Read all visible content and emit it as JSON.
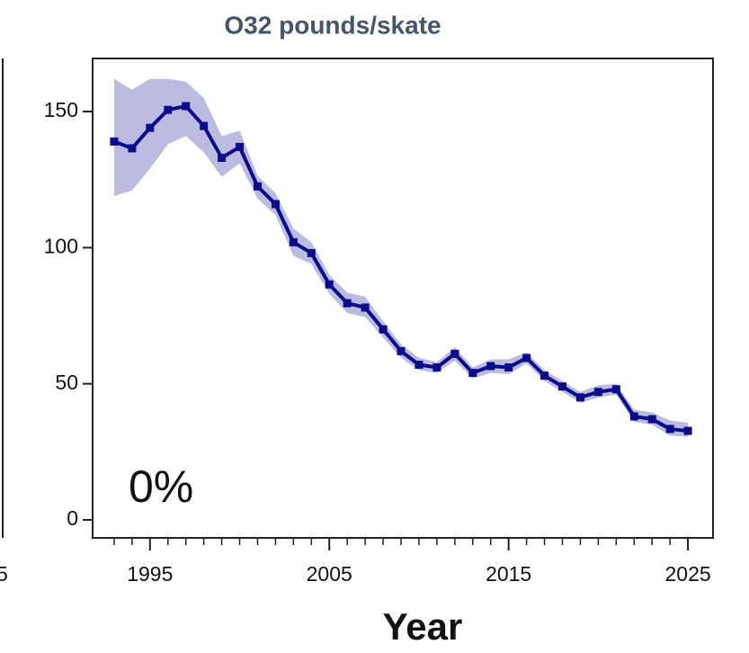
{
  "chart_data": {
    "type": "line",
    "title": "O32 pounds/skate",
    "x_label": "Year",
    "annotation": "0%",
    "partial_label": "5",
    "x": [
      1993,
      1994,
      1995,
      1996,
      1997,
      1998,
      1999,
      2000,
      2001,
      2002,
      2003,
      2004,
      2005,
      2006,
      2007,
      2008,
      2009,
      2010,
      2011,
      2012,
      2013,
      2014,
      2015,
      2016,
      2017,
      2018,
      2019,
      2020,
      2021,
      2022,
      2023,
      2024,
      2025
    ],
    "values": [
      139,
      136.5,
      144,
      150.6,
      152,
      144.7,
      133,
      137,
      122.5,
      116,
      102,
      98,
      86.5,
      79.6,
      78,
      70,
      62,
      57,
      56,
      61,
      54,
      56.5,
      56,
      59.5,
      53,
      49,
      45,
      47,
      48,
      38,
      37,
      33.4,
      32.7
    ],
    "upper": [
      162,
      158,
      162,
      162,
      161,
      155,
      141,
      143,
      126.5,
      120,
      107,
      102,
      90,
      83.5,
      82,
      73,
      64.5,
      59.5,
      58,
      63.5,
      56,
      59,
      59,
      61.5,
      55,
      51,
      47,
      49.5,
      50,
      40.5,
      39.5,
      36.5,
      35.7
    ],
    "lower": [
      119,
      121,
      129,
      138,
      141,
      135,
      126,
      131,
      118,
      112,
      97,
      94,
      83,
      76,
      74.5,
      67,
      59.5,
      55,
      54,
      58.5,
      52,
      54,
      53.5,
      57.5,
      51,
      47,
      43,
      45,
      46,
      36,
      35,
      31,
      30.5
    ],
    "color": "#0b0b8a",
    "band_color": "#bcbce3",
    "xlim": [
      1991.8,
      2026.4
    ],
    "ylim": [
      -6.6,
      169.5
    ],
    "xticks": [
      1995,
      2005,
      2015,
      2025
    ],
    "x_minor_ticks": [
      1993,
      1994,
      1995,
      1996,
      1997,
      1998,
      1999,
      2000,
      2001,
      2002,
      2003,
      2004,
      2005,
      2006,
      2007,
      2008,
      2009,
      2010,
      2011,
      2012,
      2013,
      2014,
      2015,
      2016,
      2017,
      2018,
      2019,
      2020,
      2021,
      2022,
      2023,
      2024,
      2025
    ],
    "yticks": [
      0,
      50,
      100,
      150
    ],
    "grid": false
  }
}
